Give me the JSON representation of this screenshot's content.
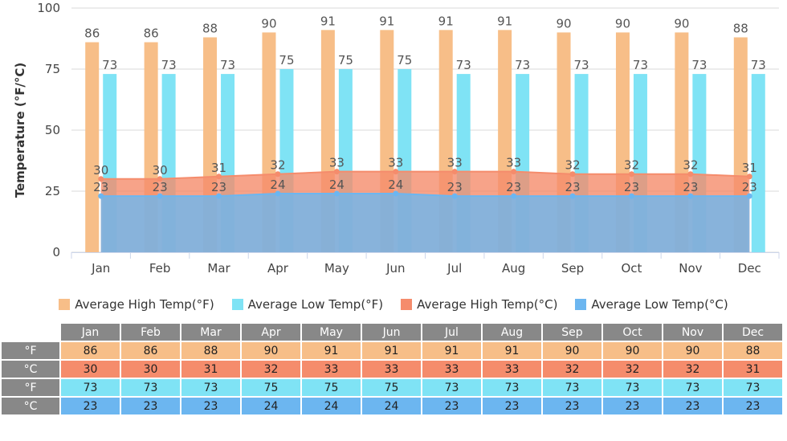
{
  "chart_data": {
    "type": "bar",
    "categories": [
      "Jan",
      "Feb",
      "Mar",
      "Apr",
      "May",
      "Jun",
      "Jul",
      "Aug",
      "Sep",
      "Oct",
      "Nov",
      "Dec"
    ],
    "ylabel": "Temperature (°F/°C)",
    "ylim": [
      0,
      100
    ],
    "yticks": [
      0,
      25,
      50,
      75,
      100
    ],
    "grid": true,
    "legend_position": "bottom",
    "series": [
      {
        "name": "Average High Temp(°F)",
        "kind": "bar",
        "color": "#f7be88",
        "values": [
          86,
          86,
          88,
          90,
          91,
          91,
          91,
          91,
          90,
          90,
          90,
          88
        ]
      },
      {
        "name": "Average Low Temp(°F)",
        "kind": "bar",
        "color": "#7fe3f5",
        "values": [
          73,
          73,
          73,
          75,
          75,
          75,
          73,
          73,
          73,
          73,
          73,
          73
        ]
      },
      {
        "name": "Average High Temp(°C)",
        "kind": "area",
        "color": "#f58c6c",
        "values": [
          30,
          30,
          31,
          32,
          33,
          33,
          33,
          33,
          32,
          32,
          32,
          31
        ]
      },
      {
        "name": "Average Low Temp(°C)",
        "kind": "area",
        "color": "#6cb6f0",
        "values": [
          23,
          23,
          23,
          24,
          24,
          24,
          23,
          23,
          23,
          23,
          23,
          23
        ]
      }
    ]
  },
  "table": {
    "rows": [
      {
        "unit": "°F",
        "color": "#f7be88",
        "series": 0
      },
      {
        "unit": "°C",
        "color": "#f58c6c",
        "series": 2
      },
      {
        "unit": "°F",
        "color": "#7fe3f5",
        "series": 1
      },
      {
        "unit": "°C",
        "color": "#6cb6f0",
        "series": 3
      }
    ]
  }
}
